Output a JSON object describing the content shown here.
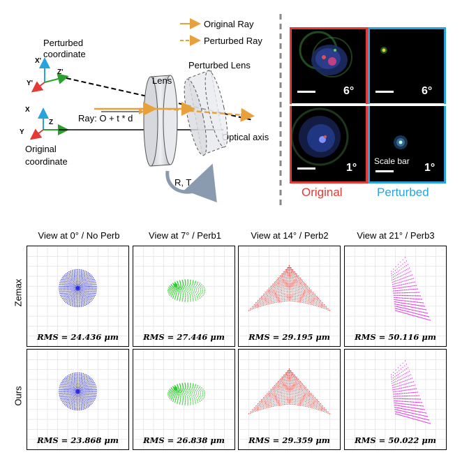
{
  "diagram": {
    "legend": {
      "original": "Original Ray",
      "perturbed": "Perturbed Ray"
    },
    "perturbed_coordinate": [
      "Perturbed",
      "coordinate"
    ],
    "original_coordinate": [
      "Original",
      "coordinate"
    ],
    "axes_perturbed": {
      "x": "X'",
      "y": "Y'",
      "z": "Z'"
    },
    "axes_original": {
      "x": "X",
      "y": "Y",
      "z": "Z"
    },
    "lens": "Lens",
    "perturbed_lens": "Perturbed Lens",
    "ray_eq": "Ray: O + t * d",
    "optical_axis": "Optical axis",
    "rt": "R, T",
    "colors": {
      "orange": "#e8a13a",
      "red": "#e53935",
      "blue": "#29a3dd"
    }
  },
  "micro": {
    "angles": {
      "top": "6°",
      "bottom": "1°"
    },
    "scale_bar": "Scale bar",
    "caption_original": "Original",
    "caption_perturbed": "Perturbed"
  },
  "grid": {
    "columns": [
      "View at 0° / No Perb",
      "View at 7° / Perb1",
      "View at 14° / Perb2",
      "View at 21° / Perb3"
    ],
    "rows": [
      "Zemax",
      "Ours"
    ],
    "rms": [
      [
        "RMS = 24.436 μm",
        "RMS = 27.446 μm",
        "RMS = 29.195 μm",
        "RMS = 50.116 μm"
      ],
      [
        "RMS = 23.868 μm",
        "RMS = 26.838 μm",
        "RMS = 29.359 μm",
        "RMS = 50.022 μm"
      ]
    ],
    "spot_colors": [
      "#2a2ae0",
      "#2ccc2c",
      "#e82020",
      "#e020e0"
    ]
  }
}
